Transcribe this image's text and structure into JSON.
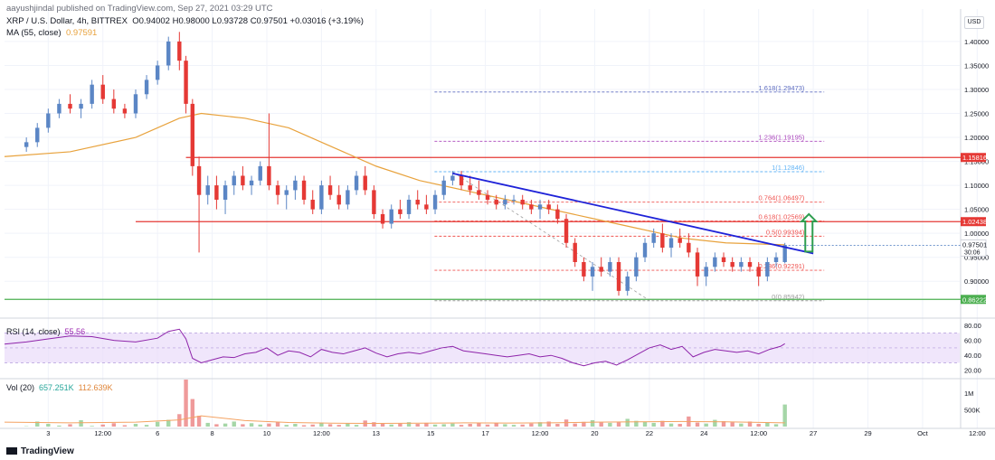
{
  "header": {
    "published": "aayushjindal published on TradingView.com, Sep 27, 2021 03:29 UTC",
    "symbol_line": "XRP / U.S. Dollar, 4h, BITTREX",
    "ohlc": "O0.94002  H0.98000  L0.93728  C0.97501  +0.03016 (+3.19%)",
    "ma_label": "MA (55, close)",
    "ma_value": "0.97591"
  },
  "currency_button": "USD",
  "rsi_label": {
    "name": "RSI (14, close)",
    "value": "55.56"
  },
  "vol_label": {
    "name": "Vol (20)",
    "value1": "657.251K",
    "value2": "112.639K"
  },
  "brand": "TradingView",
  "chart_data": {
    "type": "candlestick",
    "price_axis": {
      "ylim": [
        0.842,
        1.43
      ],
      "ticks": [
        "1.40000",
        "1.35000",
        "1.30000",
        "1.25000",
        "1.20000",
        "1.15000",
        "1.10000",
        "1.05000",
        "1.00000",
        "0.95000",
        "0.90000"
      ],
      "tick_values": [
        1.4,
        1.35,
        1.3,
        1.25,
        1.2,
        1.15,
        1.1,
        1.05,
        1.0,
        0.95,
        0.9
      ]
    },
    "time_axis": {
      "labels": [
        "3",
        "12:00",
        "6",
        "8",
        "10",
        "12:00",
        "13",
        "15",
        "17",
        "12:00",
        "20",
        "22",
        "24",
        "12:00",
        "27",
        "29",
        "Oct",
        "12:00"
      ],
      "positions": [
        1,
        3.5,
        6,
        8.5,
        11,
        13.5,
        16,
        18.5,
        21,
        23.5,
        26,
        28.5,
        31,
        33.5,
        36,
        38.5,
        41,
        43.5
      ],
      "x_range": [
        -1,
        42.7
      ]
    },
    "candles": [
      [
        0.0,
        1.18,
        1.2,
        1.17,
        1.19
      ],
      [
        0.5,
        1.19,
        1.23,
        1.18,
        1.22
      ],
      [
        1.0,
        1.22,
        1.26,
        1.21,
        1.25
      ],
      [
        1.5,
        1.25,
        1.28,
        1.24,
        1.27
      ],
      [
        2.0,
        1.27,
        1.29,
        1.25,
        1.26
      ],
      [
        2.5,
        1.26,
        1.28,
        1.24,
        1.27
      ],
      [
        3.0,
        1.27,
        1.32,
        1.26,
        1.31
      ],
      [
        3.5,
        1.31,
        1.33,
        1.27,
        1.28
      ],
      [
        4.0,
        1.28,
        1.3,
        1.25,
        1.26
      ],
      [
        4.5,
        1.26,
        1.27,
        1.24,
        1.25
      ],
      [
        5.0,
        1.25,
        1.3,
        1.24,
        1.29
      ],
      [
        5.5,
        1.29,
        1.33,
        1.28,
        1.32
      ],
      [
        6.0,
        1.32,
        1.36,
        1.31,
        1.35
      ],
      [
        6.5,
        1.35,
        1.41,
        1.34,
        1.4
      ],
      [
        7.0,
        1.4,
        1.42,
        1.34,
        1.36
      ],
      [
        7.3,
        1.36,
        1.37,
        1.25,
        1.27
      ],
      [
        7.6,
        1.27,
        1.28,
        1.12,
        1.14
      ],
      [
        7.9,
        1.14,
        1.16,
        0.96,
        1.08
      ],
      [
        8.3,
        1.08,
        1.12,
        1.06,
        1.1
      ],
      [
        8.7,
        1.1,
        1.12,
        1.05,
        1.07
      ],
      [
        9.1,
        1.07,
        1.11,
        1.04,
        1.1
      ],
      [
        9.5,
        1.1,
        1.13,
        1.08,
        1.12
      ],
      [
        9.9,
        1.12,
        1.14,
        1.09,
        1.1
      ],
      [
        10.3,
        1.1,
        1.12,
        1.08,
        1.11
      ],
      [
        10.7,
        1.11,
        1.15,
        1.1,
        1.14
      ],
      [
        11.1,
        1.14,
        1.25,
        1.09,
        1.1
      ],
      [
        11.5,
        1.1,
        1.11,
        1.06,
        1.08
      ],
      [
        11.9,
        1.08,
        1.1,
        1.05,
        1.09
      ],
      [
        12.3,
        1.09,
        1.12,
        1.07,
        1.11
      ],
      [
        12.7,
        1.11,
        1.12,
        1.06,
        1.07
      ],
      [
        13.1,
        1.07,
        1.09,
        1.04,
        1.05
      ],
      [
        13.5,
        1.05,
        1.11,
        1.04,
        1.1
      ],
      [
        13.9,
        1.1,
        1.12,
        1.07,
        1.08
      ],
      [
        14.3,
        1.08,
        1.1,
        1.05,
        1.06
      ],
      [
        14.7,
        1.06,
        1.1,
        1.05,
        1.09
      ],
      [
        15.1,
        1.09,
        1.13,
        1.08,
        1.12
      ],
      [
        15.5,
        1.12,
        1.14,
        1.08,
        1.09
      ],
      [
        15.9,
        1.09,
        1.1,
        1.03,
        1.04
      ],
      [
        16.3,
        1.04,
        1.05,
        1.01,
        1.02
      ],
      [
        16.7,
        1.02,
        1.06,
        1.01,
        1.05
      ],
      [
        17.1,
        1.05,
        1.07,
        1.03,
        1.04
      ],
      [
        17.5,
        1.04,
        1.08,
        1.03,
        1.07
      ],
      [
        17.9,
        1.07,
        1.09,
        1.05,
        1.06
      ],
      [
        18.3,
        1.06,
        1.08,
        1.04,
        1.05
      ],
      [
        18.7,
        1.05,
        1.09,
        1.04,
        1.08
      ],
      [
        19.1,
        1.08,
        1.12,
        1.07,
        1.11
      ],
      [
        19.5,
        1.11,
        1.13,
        1.1,
        1.12
      ],
      [
        19.9,
        1.12,
        1.13,
        1.09,
        1.1
      ],
      [
        20.3,
        1.1,
        1.12,
        1.08,
        1.09
      ],
      [
        20.7,
        1.09,
        1.11,
        1.07,
        1.08
      ],
      [
        21.1,
        1.08,
        1.09,
        1.06,
        1.07
      ],
      [
        21.5,
        1.07,
        1.08,
        1.05,
        1.06
      ],
      [
        21.9,
        1.06,
        1.08,
        1.05,
        1.07
      ],
      [
        22.3,
        1.07,
        1.08,
        1.06,
        1.07
      ],
      [
        22.7,
        1.07,
        1.08,
        1.05,
        1.06
      ],
      [
        23.1,
        1.06,
        1.07,
        1.04,
        1.05
      ],
      [
        23.5,
        1.05,
        1.07,
        1.03,
        1.06
      ],
      [
        23.9,
        1.06,
        1.07,
        1.04,
        1.05
      ],
      [
        24.3,
        1.05,
        1.06,
        1.02,
        1.03
      ],
      [
        24.7,
        1.03,
        1.04,
        0.97,
        0.98
      ],
      [
        25.1,
        0.98,
        0.99,
        0.93,
        0.94
      ],
      [
        25.5,
        0.94,
        0.95,
        0.9,
        0.91
      ],
      [
        25.9,
        0.91,
        0.94,
        0.88,
        0.93
      ],
      [
        26.3,
        0.93,
        0.95,
        0.91,
        0.92
      ],
      [
        26.7,
        0.92,
        0.95,
        0.91,
        0.94
      ],
      [
        27.1,
        0.94,
        0.95,
        0.87,
        0.88
      ],
      [
        27.5,
        0.88,
        0.92,
        0.87,
        0.91
      ],
      [
        27.9,
        0.91,
        0.96,
        0.9,
        0.95
      ],
      [
        28.3,
        0.95,
        0.99,
        0.94,
        0.98
      ],
      [
        28.7,
        0.98,
        1.01,
        0.97,
        1.0
      ],
      [
        29.1,
        1.0,
        1.02,
        0.96,
        0.97
      ],
      [
        29.5,
        0.97,
        1.0,
        0.95,
        0.99
      ],
      [
        29.9,
        0.99,
        1.01,
        0.97,
        0.98
      ],
      [
        30.3,
        0.98,
        1.0,
        0.95,
        0.96
      ],
      [
        30.7,
        0.96,
        0.97,
        0.89,
        0.91
      ],
      [
        31.1,
        0.91,
        0.94,
        0.89,
        0.93
      ],
      [
        31.5,
        0.93,
        0.96,
        0.92,
        0.95
      ],
      [
        31.9,
        0.95,
        0.96,
        0.93,
        0.94
      ],
      [
        32.3,
        0.94,
        0.95,
        0.92,
        0.93
      ],
      [
        32.7,
        0.93,
        0.95,
        0.92,
        0.94
      ],
      [
        33.1,
        0.94,
        0.95,
        0.92,
        0.93
      ],
      [
        33.5,
        0.93,
        0.94,
        0.89,
        0.91
      ],
      [
        33.9,
        0.91,
        0.95,
        0.9,
        0.94
      ],
      [
        34.3,
        0.94,
        0.96,
        0.93,
        0.95
      ],
      [
        34.7,
        0.94002,
        0.98,
        0.93728,
        0.97501
      ]
    ],
    "ma55": [
      [
        -1,
        1.16
      ],
      [
        2,
        1.17
      ],
      [
        5,
        1.2
      ],
      [
        7,
        1.24
      ],
      [
        8,
        1.25
      ],
      [
        10,
        1.24
      ],
      [
        12,
        1.22
      ],
      [
        14,
        1.18
      ],
      [
        16,
        1.14
      ],
      [
        18,
        1.11
      ],
      [
        20,
        1.09
      ],
      [
        22,
        1.07
      ],
      [
        24,
        1.05
      ],
      [
        26,
        1.03
      ],
      [
        28,
        1.01
      ],
      [
        30,
        0.99
      ],
      [
        32,
        0.98
      ],
      [
        34.7,
        0.976
      ]
    ],
    "horizontal_lines": [
      {
        "value": 1.15816,
        "label": "1.15816",
        "x_start": 7.3
      },
      {
        "value": 1.02438,
        "label": "1.02438",
        "x_start": 5.0
      },
      {
        "value": 0.86222,
        "label": "0.86222",
        "x_start": -1
      }
    ],
    "trendline": {
      "from": [
        19.5,
        1.125
      ],
      "to": [
        36.0,
        0.958
      ]
    },
    "fib_anchor": {
      "from": [
        19.5,
        1.128
      ],
      "to": [
        28.5,
        0.86
      ]
    },
    "fib_levels": [
      {
        "label": "1.618(1.29473)",
        "value": 1.29473
      },
      {
        "label": "1.236(1.19195)",
        "value": 1.19195
      },
      {
        "label": "1(1.12846)",
        "value": 1.12846
      },
      {
        "label": "0.764(1.06497)",
        "value": 1.06497
      },
      {
        "label": "0.618(1.02569)",
        "value": 1.02569
      },
      {
        "label": "0.5(0.99394)",
        "value": 0.99394
      },
      {
        "label": "0.236(0.92291)",
        "value": 0.92291
      },
      {
        "label": "0(0.85942)",
        "value": 0.85942
      }
    ],
    "current_price": {
      "label": "0.97501",
      "timer": "30:06",
      "value": 0.97501
    },
    "arrow": {
      "x": 35.8,
      "from": 0.962,
      "to": 1.04
    },
    "rsi": {
      "ylim": [
        10,
        85
      ],
      "ticks": [
        "80.00",
        "60.00",
        "40.00",
        "20.00"
      ],
      "tick_values": [
        80,
        60,
        40,
        20
      ],
      "band": [
        30,
        70
      ],
      "series": [
        [
          -1,
          55
        ],
        [
          0,
          58
        ],
        [
          1,
          62
        ],
        [
          2,
          66
        ],
        [
          3,
          65
        ],
        [
          4,
          60
        ],
        [
          5,
          58
        ],
        [
          6,
          63
        ],
        [
          6.5,
          72
        ],
        [
          7,
          75
        ],
        [
          7.3,
          62
        ],
        [
          7.6,
          36
        ],
        [
          8,
          30
        ],
        [
          8.5,
          34
        ],
        [
          9,
          38
        ],
        [
          9.5,
          37
        ],
        [
          10,
          42
        ],
        [
          10.5,
          44
        ],
        [
          11,
          50
        ],
        [
          11.5,
          40
        ],
        [
          12,
          46
        ],
        [
          12.5,
          44
        ],
        [
          13,
          38
        ],
        [
          13.5,
          48
        ],
        [
          14,
          44
        ],
        [
          14.5,
          42
        ],
        [
          15,
          46
        ],
        [
          15.5,
          50
        ],
        [
          16,
          43
        ],
        [
          16.5,
          38
        ],
        [
          17,
          42
        ],
        [
          17.5,
          44
        ],
        [
          18,
          42
        ],
        [
          18.5,
          46
        ],
        [
          19,
          50
        ],
        [
          19.5,
          52
        ],
        [
          20,
          46
        ],
        [
          20.5,
          44
        ],
        [
          21,
          42
        ],
        [
          21.5,
          40
        ],
        [
          22,
          38
        ],
        [
          22.5,
          40
        ],
        [
          23,
          42
        ],
        [
          23.5,
          38
        ],
        [
          24,
          40
        ],
        [
          24.5,
          36
        ],
        [
          25,
          30
        ],
        [
          25.5,
          26
        ],
        [
          26,
          30
        ],
        [
          26.5,
          32
        ],
        [
          27,
          27
        ],
        [
          27.5,
          34
        ],
        [
          28,
          42
        ],
        [
          28.5,
          50
        ],
        [
          29,
          54
        ],
        [
          29.5,
          48
        ],
        [
          30,
          52
        ],
        [
          30.5,
          38
        ],
        [
          31,
          44
        ],
        [
          31.5,
          48
        ],
        [
          32,
          46
        ],
        [
          32.5,
          44
        ],
        [
          33,
          46
        ],
        [
          33.5,
          42
        ],
        [
          34,
          48
        ],
        [
          34.5,
          52
        ],
        [
          34.7,
          55.56
        ]
      ]
    },
    "volume": {
      "ylim": [
        0,
        1400
      ],
      "ticks": [
        "1M",
        "500K"
      ],
      "tick_values": [
        1000,
        500
      ],
      "series": [
        10,
        150,
        80,
        30,
        70,
        190,
        20,
        60,
        100,
        40,
        80,
        50,
        140,
        200,
        370,
        1400,
        820,
        320,
        110,
        70,
        90,
        150,
        70,
        100,
        60,
        90,
        140,
        50,
        80,
        40,
        60,
        120,
        70,
        50,
        90,
        50,
        180,
        130,
        90,
        60,
        90,
        130,
        80,
        110,
        60,
        70,
        90,
        50,
        80,
        120,
        60,
        100,
        70,
        50,
        60,
        90,
        130,
        150,
        80,
        210,
        90,
        140,
        190,
        120,
        110,
        130,
        230,
        170,
        140,
        110,
        170,
        90,
        80,
        300,
        120,
        90,
        200,
        160,
        130,
        90,
        150,
        80,
        110,
        70,
        657
      ],
      "ma20": [
        [
          -1,
          130
        ],
        [
          2,
          110
        ],
        [
          5,
          130
        ],
        [
          7,
          200
        ],
        [
          8,
          320
        ],
        [
          10,
          180
        ],
        [
          12,
          120
        ],
        [
          14,
          100
        ],
        [
          16,
          95
        ],
        [
          18,
          100
        ],
        [
          20,
          110
        ],
        [
          22,
          105
        ],
        [
          24,
          110
        ],
        [
          26,
          130
        ],
        [
          28,
          140
        ],
        [
          30,
          150
        ],
        [
          32,
          140
        ],
        [
          34.7,
          112
        ]
      ]
    }
  }
}
